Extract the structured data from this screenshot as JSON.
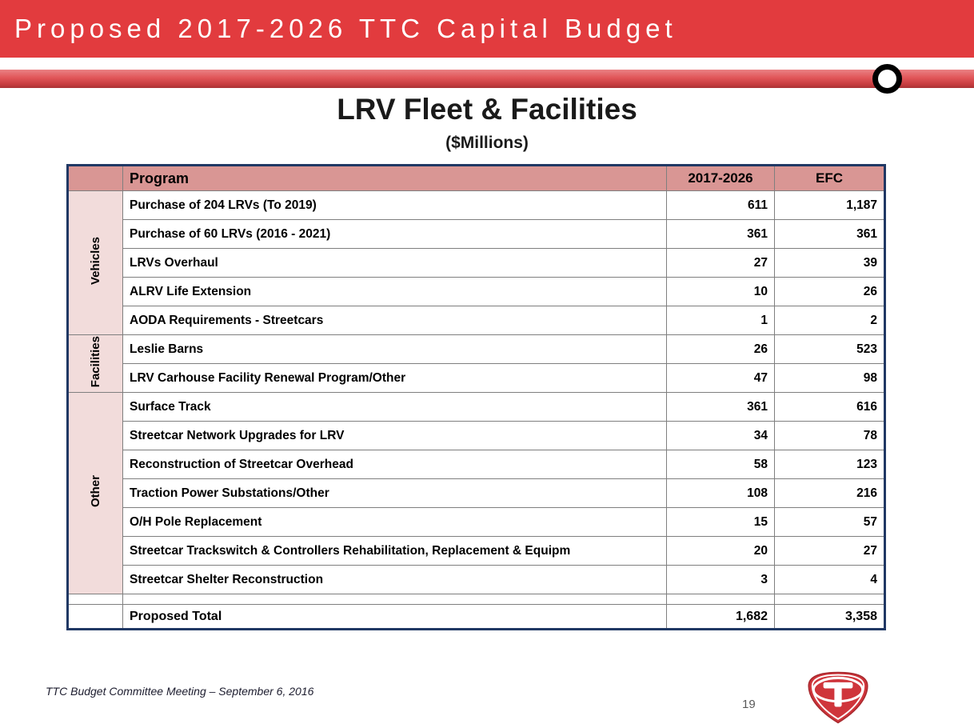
{
  "banner": {
    "title": "Proposed 2017-2026 TTC Capital Budget"
  },
  "heading": {
    "title": "LRV Fleet & Facilities",
    "subtitle": "($Millions)"
  },
  "table": {
    "headers": {
      "program": "Program",
      "budget": "2017-2026",
      "efc": "EFC"
    },
    "groups": [
      {
        "key": "vehicles",
        "label": "Vehicles",
        "rows": [
          {
            "program": "Purchase of 204 LRVs (To 2019)",
            "budget": "611",
            "efc": "1,187"
          },
          {
            "program": "Purchase of 60 LRVs (2016 - 2021)",
            "budget": "361",
            "efc": "361"
          },
          {
            "program": "LRVs Overhaul",
            "budget": "27",
            "efc": "39"
          },
          {
            "program": "ALRV Life Extension",
            "budget": "10",
            "efc": "26"
          },
          {
            "program": "AODA Requirements - Streetcars",
            "budget": "1",
            "efc": "2"
          }
        ]
      },
      {
        "key": "facilities",
        "label": "Facilities",
        "rows": [
          {
            "program": "Leslie Barns",
            "budget": "26",
            "efc": "523"
          },
          {
            "program": "LRV Carhouse Facility Renewal Program/Other",
            "budget": "47",
            "efc": "98"
          }
        ]
      },
      {
        "key": "other",
        "label": "Other",
        "rows": [
          {
            "program": "Surface Track",
            "budget": "361",
            "efc": "616"
          },
          {
            "program": "Streetcar Network Upgrades for LRV",
            "budget": "34",
            "efc": "78"
          },
          {
            "program": "Reconstruction of Streetcar Overhead",
            "budget": "58",
            "efc": "123"
          },
          {
            "program": "Traction Power Substations/Other",
            "budget": "108",
            "efc": "216"
          },
          {
            "program": "O/H Pole Replacement",
            "budget": "15",
            "efc": "57"
          },
          {
            "program": "Streetcar Trackswitch & Controllers Rehabilitation, Replacement & Equipm",
            "budget": "20",
            "efc": "27"
          },
          {
            "program": "Streetcar Shelter Reconstruction",
            "budget": "3",
            "efc": "4"
          }
        ]
      }
    ],
    "total": {
      "label": "Proposed Total",
      "budget": "1,682",
      "efc": "3,358"
    }
  },
  "footer": {
    "note": "TTC  Budget Committee  Meeting –  September 6, 2016",
    "page_number": "19"
  },
  "icons": {
    "circle_marker": "black-ring-circle",
    "logo": "ttc-logo"
  },
  "colors": {
    "banner_red": "#e23b3e",
    "header_pink": "#d99694",
    "group_pink": "#f2dcdb",
    "table_border_navy": "#203864"
  }
}
